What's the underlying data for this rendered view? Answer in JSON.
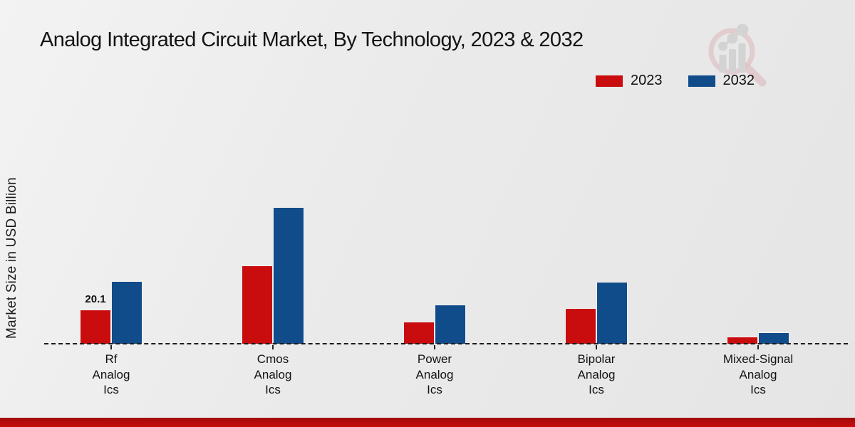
{
  "page": {
    "background": "#e9e9e9",
    "footer_gradient": [
      "#a30b0b",
      "#c70c0c"
    ]
  },
  "watermark": {
    "icon": "magnifier-bar-chart-logo",
    "ring_color": "#dcb9be",
    "glyph_color": "#cfcfcf"
  },
  "legend": {
    "position": "top-right",
    "items": [
      {
        "label": "2023",
        "color": "#c90d0e"
      },
      {
        "label": "2032",
        "color": "#114c8a"
      }
    ]
  },
  "chart_data": {
    "type": "bar",
    "title": "Analog Integrated Circuit Market, By Technology, 2023 & 2032",
    "xlabel": "",
    "ylabel": "Market Size in USD Billion",
    "value_axis_visible": false,
    "grid": false,
    "baseline_style": "dashed",
    "legend_position": "top-right",
    "categories": [
      "Rf Analog Ics",
      "Cmos Analog Ics",
      "Power Analog Ics",
      "Bipolar Analog Ics",
      "Mixed-Signal Analog Ics"
    ],
    "category_label_lines": [
      [
        "Rf",
        "Analog",
        "Ics"
      ],
      [
        "Cmos",
        "Analog",
        "Ics"
      ],
      [
        "Power",
        "Analog",
        "Ics"
      ],
      [
        "Bipolar",
        "Analog",
        "Ics"
      ],
      [
        "Mixed-Signal",
        "Analog",
        "Ics"
      ]
    ],
    "series": [
      {
        "name": "2023",
        "color": "#c90d0e",
        "values": [
          20.1,
          46.1,
          13.0,
          20.9,
          4.2
        ]
      },
      {
        "name": "2032",
        "color": "#114c8a",
        "values": [
          36.9,
          80.4,
          23.0,
          36.4,
          6.7
        ]
      }
    ],
    "bar_labels": [
      {
        "series": 0,
        "category": 0,
        "text": "20.1"
      }
    ],
    "ylim": [
      0,
      100
    ]
  }
}
